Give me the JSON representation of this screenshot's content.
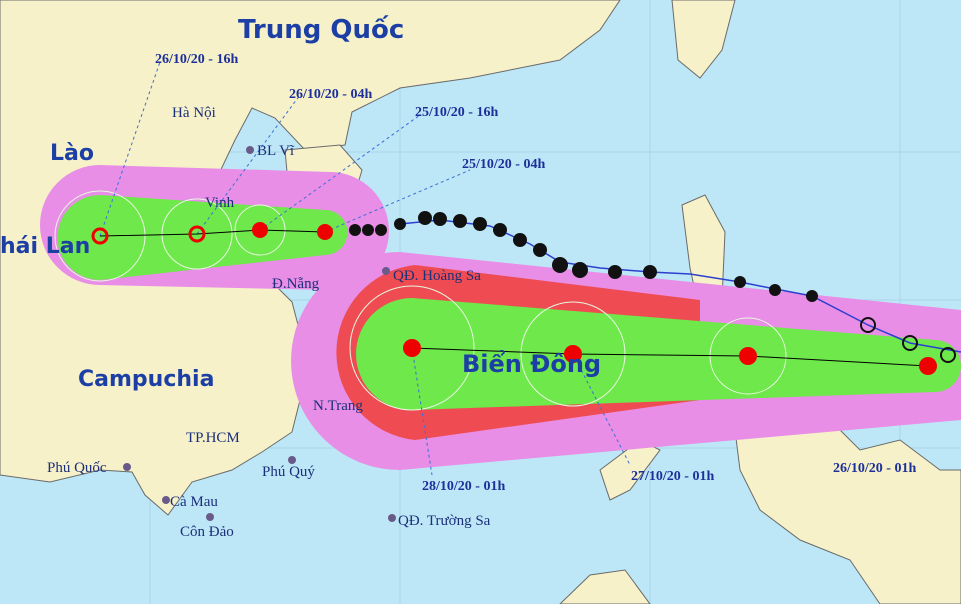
{
  "map": {
    "countries": [
      "Trung Quốc",
      "Lào",
      "hái Lan",
      "Campuchia",
      "Biển Đông"
    ],
    "places": [
      "Hà Nội",
      "BL Vĩ",
      "Vinh",
      "Đ.Nẵng",
      "QĐ. Hoàng Sa",
      "N.Trang",
      "TP.HCM",
      "Phú Quốc",
      "Phú Quý",
      "Cà Mau",
      "Côn Đảo",
      "QĐ. Trường Sa"
    ],
    "times": [
      "26/10/20 - 16h",
      "26/10/20 - 04h",
      "25/10/20 - 16h",
      "25/10/20 - 04h",
      "28/10/20 - 01h",
      "27/10/20 - 01h",
      "26/10/20 - 01h"
    ]
  }
}
